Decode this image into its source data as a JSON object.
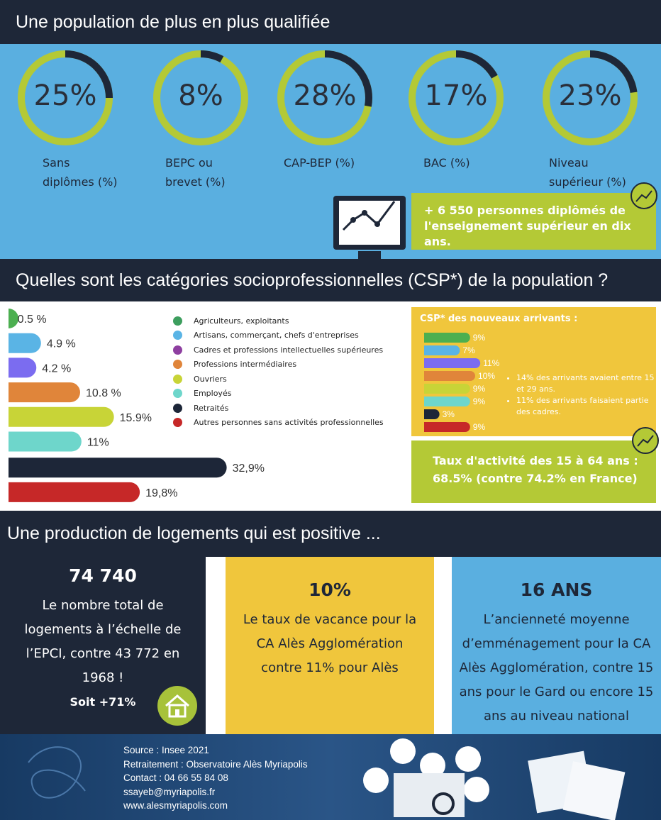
{
  "section1": {
    "title": "Une population de plus en plus qualifiée",
    "rings": [
      {
        "value": 25,
        "label": "25%",
        "caption": "Sans diplômes (%)"
      },
      {
        "value": 8,
        "label": "8%",
        "caption": "BEPC ou brevet (%)"
      },
      {
        "value": 28,
        "label": "28%",
        "caption": "CAP-BEP (%)"
      },
      {
        "value": 17,
        "label": "17%",
        "caption": "BAC (%)"
      },
      {
        "value": 23,
        "label": "23%",
        "caption": "Niveau supérieur (%)"
      }
    ],
    "callout": "+ 6 550 personnes diplômés de l'enseignement supérieur en dix ans."
  },
  "section2": {
    "title": "Quelles sont les catégories socioprofessionnelles (CSP*) de la population ?",
    "bars": {
      "values": [
        0.5,
        4.9,
        4.2,
        10.8,
        15.9,
        11,
        32.9,
        19.8
      ],
      "value_labels": [
        "0.5 %",
        "4.9 %",
        "4.2 %",
        "10.8 %",
        "15.9%",
        "11%",
        "32,9%",
        "19,8%"
      ],
      "colors": [
        "#4caf50",
        "#5ab4e5",
        "#7b6cf0",
        "#e0853a",
        "#c8d437",
        "#6ed6cb",
        "#1d2638",
        "#c62828"
      ]
    },
    "legend": [
      {
        "name": "Agriculteurs, exploitants",
        "color": "#3d9e5e"
      },
      {
        "name": "Artisans, commerçant, chefs d'entreprises",
        "color": "#5ab4e5"
      },
      {
        "name": "Cadres et professions intellectuelles supérieures",
        "color": "#8e3fa0"
      },
      {
        "name": "Professions intermédiaires",
        "color": "#e0853a"
      },
      {
        "name": "Ouvriers",
        "color": "#c8d437"
      },
      {
        "name": "Employés",
        "color": "#6ed6cb"
      },
      {
        "name": "Retraités",
        "color": "#1d2638"
      },
      {
        "name": "Autres personnes sans activités professionnelles",
        "color": "#c62828"
      }
    ],
    "arrivals": {
      "title": "CSP* des nouveaux arrivants :",
      "values": [
        9,
        7,
        11,
        10,
        9,
        9,
        3,
        9
      ],
      "value_labels": [
        "9%",
        "7%",
        "11%",
        "10%",
        "9%",
        "9%",
        "3%",
        "9%"
      ],
      "notes": [
        "14% des arrivants avaient entre 15 et 29 ans.",
        "11% des arrivants faisaient partie des cadres."
      ]
    },
    "activity": "Taux d'activité des 15 à 64 ans : 68.5% (contre 74.2% en France)"
  },
  "section3": {
    "title": "Une production de logements qui est positive ...",
    "cards": [
      {
        "headline": "74 740",
        "text": "Le nombre total de logements à l’échelle de l’EPCI, contre 43 772 en 1968 !",
        "extra": "Soit +71%"
      },
      {
        "headline": "10%",
        "text": "Le taux de vacance pour la CA Alès Agglomération contre 11% pour Alès"
      },
      {
        "headline": "16 ANS",
        "text": "L’ancienneté moyenne d’emménagement pour la CA Alès Agglomération, contre 15 ans pour le Gard ou encore 15 ans au niveau national"
      }
    ]
  },
  "footer": {
    "lines": [
      "Source : Insee 2021",
      "Retraitement : Observatoire Alès Myriapolis",
      "Contact : 04 66 55 84 08",
      "ssayeb@myriapolis.fr",
      "www.alesmyriapolis.com"
    ]
  }
}
